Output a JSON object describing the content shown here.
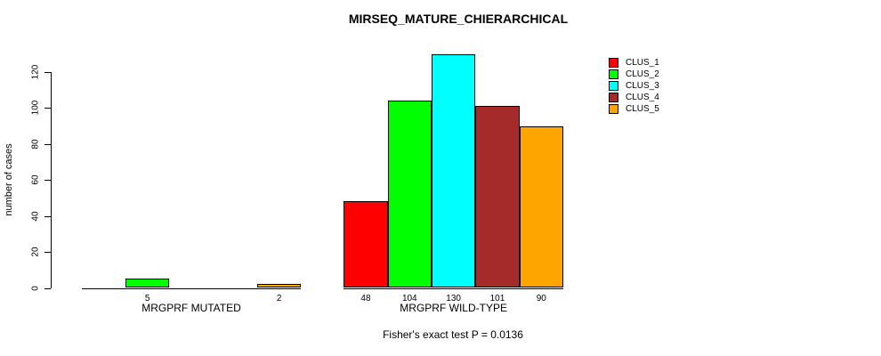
{
  "chart_data": {
    "type": "bar",
    "title": "MIRSEQ_MATURE_CHIERARCHICAL",
    "ylabel": "number of cases",
    "subtitle": "Fisher's exact test P = 0.0136",
    "ylim": [
      0,
      130
    ],
    "yticks": [
      0,
      20,
      40,
      60,
      80,
      100,
      120
    ],
    "grid": false,
    "legend_position": "top-right",
    "show_zero_value_labels": false,
    "series": [
      {
        "name": "CLUS_1",
        "color": "#ff0000"
      },
      {
        "name": "CLUS_2",
        "color": "#00ff00"
      },
      {
        "name": "CLUS_3",
        "color": "#00ffff"
      },
      {
        "name": "CLUS_4",
        "color": "#a52a2a"
      },
      {
        "name": "CLUS_5",
        "color": "#ffa500"
      }
    ],
    "groups": [
      {
        "label": "MRGPRF MUTATED",
        "values": [
          0,
          5,
          0,
          0,
          2
        ]
      },
      {
        "label": "MRGPRF WILD-TYPE",
        "values": [
          48,
          104,
          130,
          101,
          90
        ]
      }
    ],
    "colors": {
      "background": "#ffffff",
      "axis": "#000000",
      "text": "#000000"
    }
  }
}
